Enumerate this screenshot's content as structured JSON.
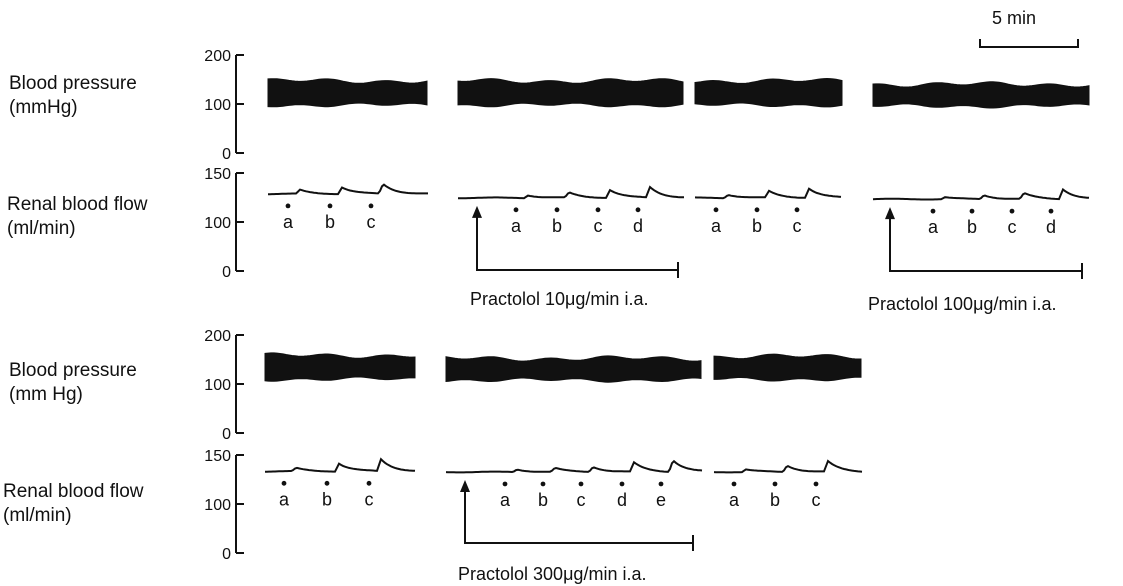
{
  "chart_data": {
    "type": "line",
    "panels": [
      {
        "bp_label": [
          "Blood pressure",
          "(mmHg)"
        ],
        "rbf_label": [
          "Renal blood flow",
          "(ml/min)"
        ],
        "bp_ticks": [
          200,
          100,
          0
        ],
        "rbf_ticks": [
          150,
          100,
          0
        ],
        "traces": [
          {
            "markers": [
              "a",
              "b",
              "c"
            ],
            "pressure": [
              98,
              147
            ],
            "flow_baseline": 118,
            "flow_peaks": [
              6,
              10,
              15
            ]
          },
          {
            "markers": [
              "a",
              "b",
              "c",
              "d"
            ],
            "pressure": [
              98,
              147
            ],
            "flow_baseline": 112,
            "flow_peaks": [
              4,
              8,
              12,
              16
            ],
            "drug": "Practolol  10μg/min i.a."
          },
          {
            "markers": [
              "a",
              "b",
              "c"
            ],
            "pressure": [
              98,
              147
            ],
            "flow_baseline": 112,
            "flow_peaks": [
              5,
              10,
              14
            ]
          },
          {
            "markers": [
              "a",
              "b",
              "c",
              "d"
            ],
            "pressure": [
              96,
              140
            ],
            "flow_baseline": 110,
            "flow_peaks": [
              3,
              6,
              9,
              15
            ],
            "drug": "Practolol  100μg/min i.a."
          }
        ]
      },
      {
        "bp_label": [
          "Blood pressure",
          "(mm Hg)"
        ],
        "rbf_label": [
          "Renal blood flow",
          "(ml/min)"
        ],
        "bp_ticks": [
          200,
          100,
          0
        ],
        "rbf_ticks": [
          150,
          100,
          0
        ],
        "traces": [
          {
            "markers": [
              "a",
              "b",
              "c"
            ],
            "pressure": [
              110,
              158
            ],
            "flow_baseline": 125,
            "flow_peaks": [
              5,
              12,
              18
            ]
          },
          {
            "markers": [
              "a",
              "b",
              "c",
              "d",
              "e"
            ],
            "pressure": [
              108,
              152
            ],
            "flow_baseline": 124,
            "flow_peaks": [
              4,
              6,
              8,
              14,
              18
            ],
            "drug": "Practolol  300μg/min i.a."
          },
          {
            "markers": [
              "a",
              "b",
              "c"
            ],
            "pressure": [
              110,
              156
            ],
            "flow_baseline": 124,
            "flow_peaks": [
              4,
              10,
              16
            ]
          }
        ]
      }
    ],
    "time_scale": "5 min"
  }
}
